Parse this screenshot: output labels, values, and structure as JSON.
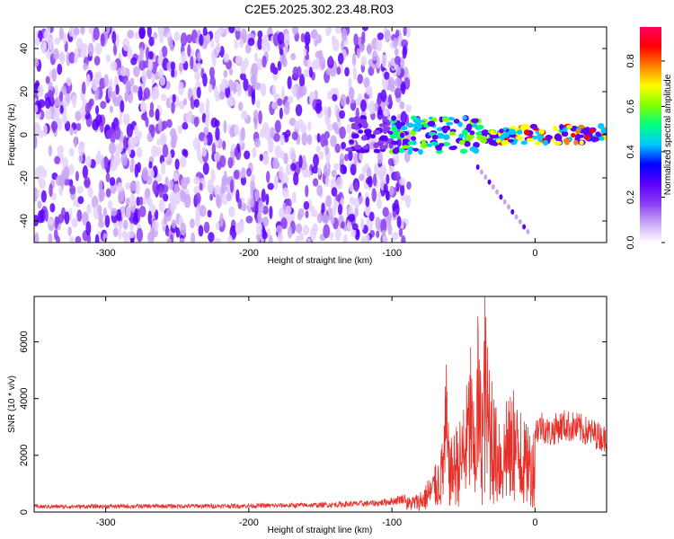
{
  "figure_title": "C2E5.2025.302.23.48.R03",
  "chart_data": [
    {
      "type": "heatmap",
      "title": "",
      "xlabel": "Height of straight line (km)",
      "ylabel": "Frequency (Hz)",
      "xlim": [
        -350,
        50
      ],
      "ylim": [
        -50,
        50
      ],
      "x_ticks": [
        "-300",
        "-200",
        "-100",
        "0"
      ],
      "x_tick_values": [
        -300,
        -200,
        -100,
        0
      ],
      "y_ticks": [
        "40",
        "20",
        "0",
        "-20",
        "-40"
      ],
      "y_tick_values": [
        40,
        20,
        0,
        -20,
        -40
      ],
      "colorbar": {
        "label": "Normalized spectral amplitude",
        "range": [
          0,
          0.95
        ],
        "ticks": [
          "0.0",
          "0.2",
          "0.4",
          "0.6",
          "0.8"
        ],
        "tick_values": [
          0.0,
          0.2,
          0.4,
          0.6,
          0.8
        ],
        "colormap": [
          "#ffffff",
          "#c9a6f5",
          "#8a3cf0",
          "#5a00ff",
          "#0000ff",
          "#00c8ff",
          "#00ff80",
          "#80ff00",
          "#ffff00",
          "#ff8000",
          "#ff0000",
          "#ff0060"
        ]
      },
      "features": {
        "noise_region_x": [
          -350,
          -88
        ],
        "signal_line_y": 0,
        "signal_start_x": -90,
        "signal_strongest_x": [
          -30,
          50
        ],
        "secondary_trace": {
          "x": [
            -40,
            -5
          ],
          "y": [
            -15,
            -45
          ]
        }
      },
      "grid": false
    },
    {
      "type": "line",
      "title": "",
      "xlabel": "Height of straight line (km)",
      "ylabel": "SNR (10 * v/v)",
      "xlim": [
        -350,
        50
      ],
      "ylim": [
        0,
        7600
      ],
      "x_ticks": [
        "-300",
        "-200",
        "-100",
        "0"
      ],
      "x_tick_values": [
        -300,
        -200,
        -100,
        0
      ],
      "y_ticks": [
        "0",
        "2000",
        "4000",
        "6000"
      ],
      "y_tick_values": [
        0,
        2000,
        4000,
        6000
      ],
      "color": "#e8302a",
      "series": [
        {
          "x": [
            -350,
            -300,
            -250,
            -200,
            -150,
            -110,
            -100,
            -90,
            -80,
            -75,
            -70,
            -65,
            -62,
            -60,
            -55,
            -50,
            -45,
            -42,
            -40,
            -37,
            -35,
            -32,
            -30,
            -25,
            -20,
            -15,
            -10,
            -5,
            0,
            5,
            10,
            15,
            20,
            25,
            30,
            35,
            40,
            45,
            50
          ],
          "y": [
            200,
            210,
            220,
            230,
            260,
            330,
            400,
            520,
            700,
            1100,
            1600,
            2400,
            5200,
            2500,
            3000,
            3600,
            5800,
            3000,
            6900,
            4200,
            7600,
            5000,
            4600,
            3100,
            3900,
            4300,
            3500,
            3000,
            3100,
            3300,
            3000,
            3200,
            3300,
            3250,
            3200,
            3100,
            3000,
            2900,
            2750
          ]
        }
      ],
      "grid": false
    }
  ]
}
